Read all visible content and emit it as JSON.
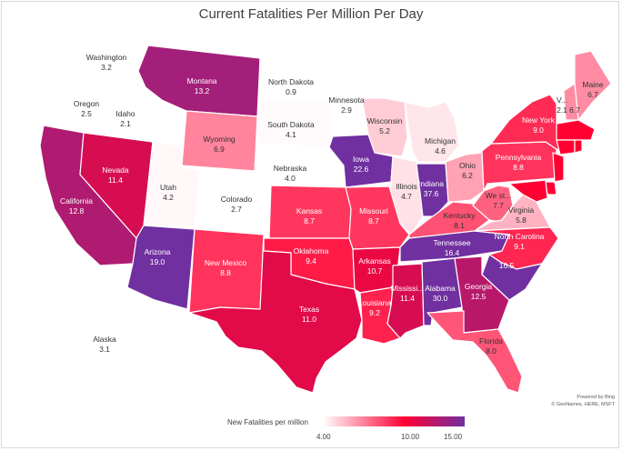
{
  "chart_data": {
    "type": "choropleth",
    "title": "Current Fatalities Per Million Per Day",
    "legend": {
      "title": "New Fatalities per million",
      "ticks": [
        "4.00",
        "10.00",
        "15.00"
      ],
      "min": 4.0,
      "mid": 10.0,
      "max": 15.0,
      "colors": {
        "low": "#ffffff",
        "mid": "#ff0033",
        "high": "#7030a0"
      }
    },
    "attribution": [
      "Powered by Bing",
      "© GeoNames, HERE, MSFT"
    ],
    "states": [
      {
        "id": "WA",
        "label": "Washington",
        "value": 3.2
      },
      {
        "id": "OR",
        "label": "Oregon",
        "value": 2.5
      },
      {
        "id": "ID",
        "label": "Idaho",
        "value": 2.1
      },
      {
        "id": "MT",
        "label": "Montana",
        "value": 13.2
      },
      {
        "id": "ND",
        "label": "North Dakota",
        "value": 0.9
      },
      {
        "id": "MN",
        "label": "Minnesota",
        "value": 2.9
      },
      {
        "id": "SD",
        "label": "South Dakota",
        "value": 4.1
      },
      {
        "id": "WI",
        "label": "Wisconsin",
        "value": 5.2
      },
      {
        "id": "MI",
        "label": "Michigan",
        "value": 4.6
      },
      {
        "id": "WY",
        "label": "Wyoming",
        "value": 6.9
      },
      {
        "id": "NE",
        "label": "Nebraska",
        "value": 4.0
      },
      {
        "id": "IA",
        "label": "Iowa",
        "value": 22.6
      },
      {
        "id": "IL",
        "label": "Illinois",
        "value": 4.7
      },
      {
        "id": "IN",
        "label": "Indiana",
        "value": 37.6
      },
      {
        "id": "OH",
        "label": "Ohio",
        "value": 6.2
      },
      {
        "id": "PA",
        "label": "Pennsylvania",
        "value": 8.8
      },
      {
        "id": "NY",
        "label": "New York",
        "value": 9.0
      },
      {
        "id": "ME",
        "label": "Maine",
        "value": 6.7
      },
      {
        "id": "VT",
        "label": "V...",
        "value": 2.1
      },
      {
        "id": "NH",
        "label": "",
        "value": 6.7
      },
      {
        "id": "MA",
        "label": "",
        "value": null
      },
      {
        "id": "CA",
        "label": "California",
        "value": 12.8
      },
      {
        "id": "NV",
        "label": "Nevada",
        "value": 11.4
      },
      {
        "id": "UT",
        "label": "Utah",
        "value": 4.2
      },
      {
        "id": "CO",
        "label": "Colorado",
        "value": 2.7
      },
      {
        "id": "KS",
        "label": "Kansas",
        "value": 8.7
      },
      {
        "id": "MO",
        "label": "Missouri",
        "value": 8.7
      },
      {
        "id": "KY",
        "label": "Kentucky",
        "value": 8.1
      },
      {
        "id": "WV",
        "label": "We st...",
        "value": 7.7
      },
      {
        "id": "VA",
        "label": "Virginia",
        "value": 5.8
      },
      {
        "id": "AZ",
        "label": "Arizona",
        "value": 19.0
      },
      {
        "id": "NM",
        "label": "New Mexico",
        "value": 8.8
      },
      {
        "id": "OK",
        "label": "Oklahoma",
        "value": 9.4
      },
      {
        "id": "AR",
        "label": "Arkansas",
        "value": 10.7
      },
      {
        "id": "TN",
        "label": "Tennessee",
        "value": 16.4
      },
      {
        "id": "NC",
        "label": "North Carolina",
        "value": 9.1
      },
      {
        "id": "SC",
        "label": "",
        "value": 16.5
      },
      {
        "id": "TX",
        "label": "Texas",
        "value": 11.0
      },
      {
        "id": "LA",
        "label": "Louisiana",
        "value": 9.2
      },
      {
        "id": "MS",
        "label": "Mississi...",
        "value": 11.4
      },
      {
        "id": "AL",
        "label": "Alabama",
        "value": 30.0
      },
      {
        "id": "GA",
        "label": "Georgia",
        "value": 12.5
      },
      {
        "id": "FL",
        "label": "Florida",
        "value": 8.0
      },
      {
        "id": "AK",
        "label": "Alaska",
        "value": 3.1
      },
      {
        "id": "MD",
        "label": "",
        "value": null
      },
      {
        "id": "NJ",
        "label": "",
        "value": null
      },
      {
        "id": "CT",
        "label": "",
        "value": null
      },
      {
        "id": "DE",
        "label": "",
        "value": null
      },
      {
        "id": "RI",
        "label": "",
        "value": null
      }
    ]
  }
}
